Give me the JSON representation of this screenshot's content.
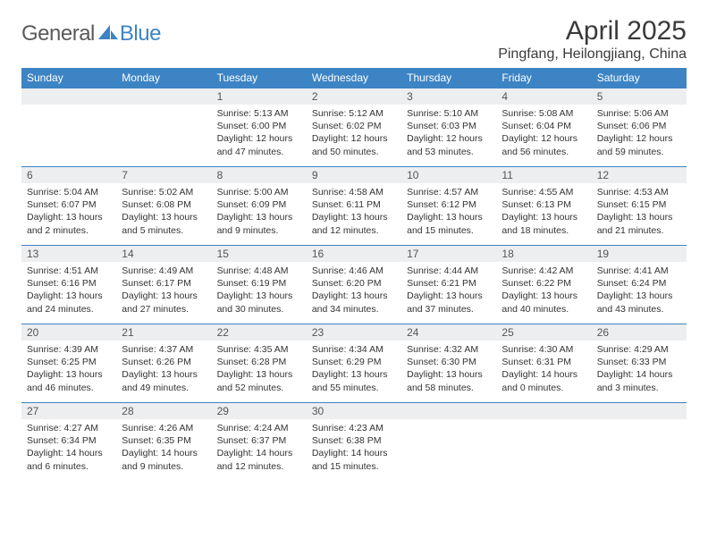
{
  "logo": {
    "part1": "General",
    "part2": "Blue"
  },
  "title": "April 2025",
  "location": "Pingfang, Heilongjiang, China",
  "style": {
    "header_bg": "#3d84c4",
    "header_fg": "#ffffff",
    "daynum_bg": "#eceef0",
    "row_border": "#3d84c4",
    "body_bg": "#ffffff",
    "title_color": "#3a3a3a",
    "logo_gray": "#5a5a5a",
    "logo_blue": "#3d84c4",
    "title_fontsize": 30,
    "location_fontsize": 16,
    "dayhead_fontsize": 12,
    "cell_fontsize": 10.5
  },
  "dayHeaders": [
    "Sunday",
    "Monday",
    "Tuesday",
    "Wednesday",
    "Thursday",
    "Friday",
    "Saturday"
  ],
  "weeks": [
    [
      null,
      null,
      {
        "n": "1",
        "sr": "5:13 AM",
        "ss": "6:00 PM",
        "dl": "12 hours and 47 minutes."
      },
      {
        "n": "2",
        "sr": "5:12 AM",
        "ss": "6:02 PM",
        "dl": "12 hours and 50 minutes."
      },
      {
        "n": "3",
        "sr": "5:10 AM",
        "ss": "6:03 PM",
        "dl": "12 hours and 53 minutes."
      },
      {
        "n": "4",
        "sr": "5:08 AM",
        "ss": "6:04 PM",
        "dl": "12 hours and 56 minutes."
      },
      {
        "n": "5",
        "sr": "5:06 AM",
        "ss": "6:06 PM",
        "dl": "12 hours and 59 minutes."
      }
    ],
    [
      {
        "n": "6",
        "sr": "5:04 AM",
        "ss": "6:07 PM",
        "dl": "13 hours and 2 minutes."
      },
      {
        "n": "7",
        "sr": "5:02 AM",
        "ss": "6:08 PM",
        "dl": "13 hours and 5 minutes."
      },
      {
        "n": "8",
        "sr": "5:00 AM",
        "ss": "6:09 PM",
        "dl": "13 hours and 9 minutes."
      },
      {
        "n": "9",
        "sr": "4:58 AM",
        "ss": "6:11 PM",
        "dl": "13 hours and 12 minutes."
      },
      {
        "n": "10",
        "sr": "4:57 AM",
        "ss": "6:12 PM",
        "dl": "13 hours and 15 minutes."
      },
      {
        "n": "11",
        "sr": "4:55 AM",
        "ss": "6:13 PM",
        "dl": "13 hours and 18 minutes."
      },
      {
        "n": "12",
        "sr": "4:53 AM",
        "ss": "6:15 PM",
        "dl": "13 hours and 21 minutes."
      }
    ],
    [
      {
        "n": "13",
        "sr": "4:51 AM",
        "ss": "6:16 PM",
        "dl": "13 hours and 24 minutes."
      },
      {
        "n": "14",
        "sr": "4:49 AM",
        "ss": "6:17 PM",
        "dl": "13 hours and 27 minutes."
      },
      {
        "n": "15",
        "sr": "4:48 AM",
        "ss": "6:19 PM",
        "dl": "13 hours and 30 minutes."
      },
      {
        "n": "16",
        "sr": "4:46 AM",
        "ss": "6:20 PM",
        "dl": "13 hours and 34 minutes."
      },
      {
        "n": "17",
        "sr": "4:44 AM",
        "ss": "6:21 PM",
        "dl": "13 hours and 37 minutes."
      },
      {
        "n": "18",
        "sr": "4:42 AM",
        "ss": "6:22 PM",
        "dl": "13 hours and 40 minutes."
      },
      {
        "n": "19",
        "sr": "4:41 AM",
        "ss": "6:24 PM",
        "dl": "13 hours and 43 minutes."
      }
    ],
    [
      {
        "n": "20",
        "sr": "4:39 AM",
        "ss": "6:25 PM",
        "dl": "13 hours and 46 minutes."
      },
      {
        "n": "21",
        "sr": "4:37 AM",
        "ss": "6:26 PM",
        "dl": "13 hours and 49 minutes."
      },
      {
        "n": "22",
        "sr": "4:35 AM",
        "ss": "6:28 PM",
        "dl": "13 hours and 52 minutes."
      },
      {
        "n": "23",
        "sr": "4:34 AM",
        "ss": "6:29 PM",
        "dl": "13 hours and 55 minutes."
      },
      {
        "n": "24",
        "sr": "4:32 AM",
        "ss": "6:30 PM",
        "dl": "13 hours and 58 minutes."
      },
      {
        "n": "25",
        "sr": "4:30 AM",
        "ss": "6:31 PM",
        "dl": "14 hours and 0 minutes."
      },
      {
        "n": "26",
        "sr": "4:29 AM",
        "ss": "6:33 PM",
        "dl": "14 hours and 3 minutes."
      }
    ],
    [
      {
        "n": "27",
        "sr": "4:27 AM",
        "ss": "6:34 PM",
        "dl": "14 hours and 6 minutes."
      },
      {
        "n": "28",
        "sr": "4:26 AM",
        "ss": "6:35 PM",
        "dl": "14 hours and 9 minutes."
      },
      {
        "n": "29",
        "sr": "4:24 AM",
        "ss": "6:37 PM",
        "dl": "14 hours and 12 minutes."
      },
      {
        "n": "30",
        "sr": "4:23 AM",
        "ss": "6:38 PM",
        "dl": "14 hours and 15 minutes."
      },
      null,
      null,
      null
    ]
  ],
  "labels": {
    "sunrise": "Sunrise:",
    "sunset": "Sunset:",
    "daylight": "Daylight:"
  }
}
